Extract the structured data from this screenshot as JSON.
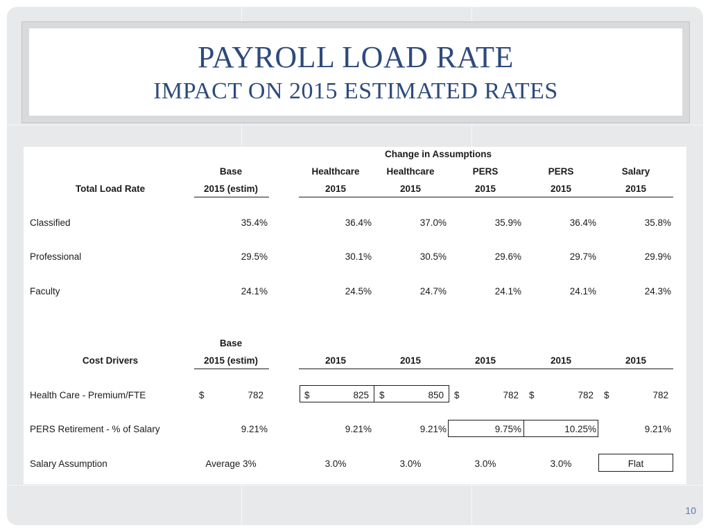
{
  "title": {
    "line1": "PAYROLL LOAD RATE",
    "line2": "IMPACT ON 2015 ESTIMATED RATES"
  },
  "page_number": "10",
  "table": {
    "group_header": "Change in Assumptions",
    "base_header": {
      "line1": "Base",
      "line2": "2015 (estim)",
      "line2_lower": "2015 (estim)"
    },
    "scenario_headers": [
      {
        "top": "Healthcare",
        "year": "2015"
      },
      {
        "top": "Healthcare",
        "year": "2015"
      },
      {
        "top": "PERS",
        "year": "2015"
      },
      {
        "top": "PERS",
        "year": "2015"
      },
      {
        "top": "Salary",
        "year": "2015"
      }
    ],
    "load_rate_section": {
      "label": "Total Load Rate",
      "rows": [
        {
          "name": "Classified",
          "base": "35.4%",
          "values": [
            "36.4%",
            "37.0%",
            "35.9%",
            "36.4%",
            "35.8%"
          ]
        },
        {
          "name": "Professional",
          "base": "29.5%",
          "values": [
            "30.1%",
            "30.5%",
            "29.6%",
            "29.7%",
            "29.9%"
          ]
        },
        {
          "name": "Faculty",
          "base": "24.1%",
          "values": [
            "24.5%",
            "24.7%",
            "24.1%",
            "24.1%",
            "24.3%"
          ]
        }
      ]
    },
    "cost_driver_section": {
      "label": "Cost Drivers",
      "base_top": "Base",
      "base_year": "2015 (estim)",
      "years": [
        "2015",
        "2015",
        "2015",
        "2015",
        "2015"
      ],
      "currency_symbol": "$",
      "health_care": {
        "name": "Health Care - Premium/FTE",
        "base": "782",
        "values": [
          "825",
          "850",
          "782",
          "782",
          "782"
        ]
      },
      "pers": {
        "name": "PERS Retirement - % of Salary",
        "base": "9.21%",
        "values": [
          "9.21%",
          "9.21%",
          "9.75%",
          "10.25%",
          "9.21%"
        ]
      },
      "salary": {
        "name": "Salary Assumption",
        "base": "Average 3%",
        "values": [
          "3.0%",
          "3.0%",
          "3.0%",
          "3.0%",
          "Flat"
        ]
      }
    }
  }
}
